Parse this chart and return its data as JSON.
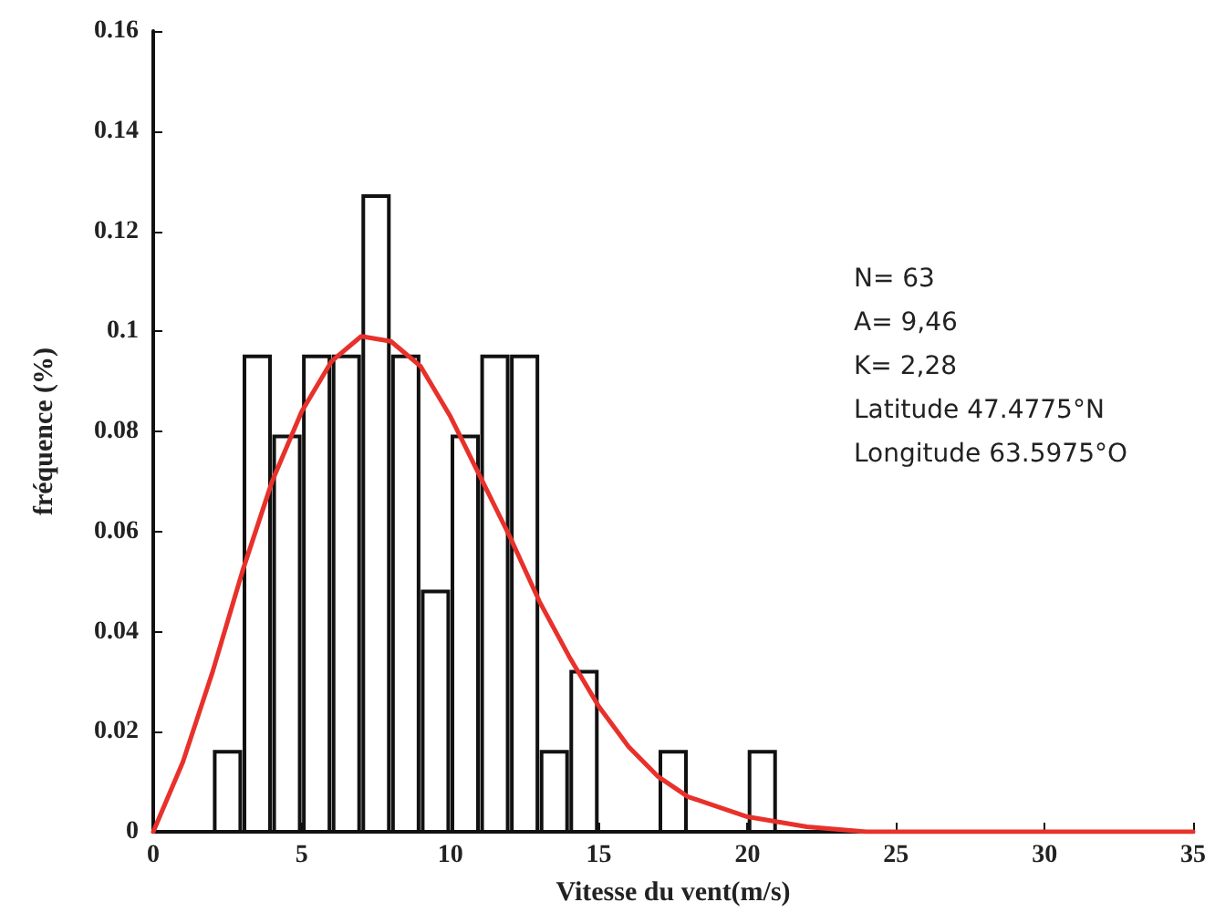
{
  "chart_data": {
    "type": "histogram",
    "xlabel": "Vitesse du vent(m/s)",
    "ylabel": "fréquence (%)",
    "bins": [
      2,
      3,
      4,
      5,
      6,
      7,
      8,
      9,
      10,
      11,
      12,
      13,
      14,
      15,
      16,
      17,
      18,
      19,
      20,
      21
    ],
    "values": [
      0.016,
      0.095,
      0.079,
      0.095,
      0.095,
      0.127,
      0.095,
      0.048,
      0.079,
      0.095,
      0.095,
      0.016,
      0.032,
      0,
      0,
      0.016,
      0,
      0,
      0.016
    ],
    "color": "#ffffff",
    "series": [
      {
        "type": "line",
        "color": "#e8312b",
        "x": [
          0,
          1,
          2,
          3,
          4,
          5,
          6,
          7,
          8,
          9,
          10,
          11,
          12,
          13,
          14,
          15,
          16,
          17,
          18,
          20,
          22,
          24,
          35
        ],
        "values": [
          0,
          0.014,
          0.032,
          0.052,
          0.07,
          0.084,
          0.094,
          0.099,
          0.098,
          0.093,
          0.083,
          0.071,
          0.059,
          0.046,
          0.035,
          0.025,
          0.017,
          0.011,
          0.007,
          0.003,
          0.001,
          0,
          0
        ]
      }
    ],
    "xlim": [
      0,
      35
    ],
    "xticks": [
      0,
      5,
      10,
      15,
      20,
      25,
      30,
      35
    ],
    "ylim": [
      0,
      0.16
    ],
    "yticks": [
      0,
      0.02,
      0.04,
      0.06,
      0.08,
      0.1,
      0.12,
      0.14,
      0.16
    ],
    "annotations": [
      "N= 63",
      "A= 9,46",
      "K= 2,28",
      "Latitude 47.4775°N",
      "Longitude 63.5975°O"
    ],
    "grid": false,
    "marker": "none",
    "line_style": "solid"
  }
}
